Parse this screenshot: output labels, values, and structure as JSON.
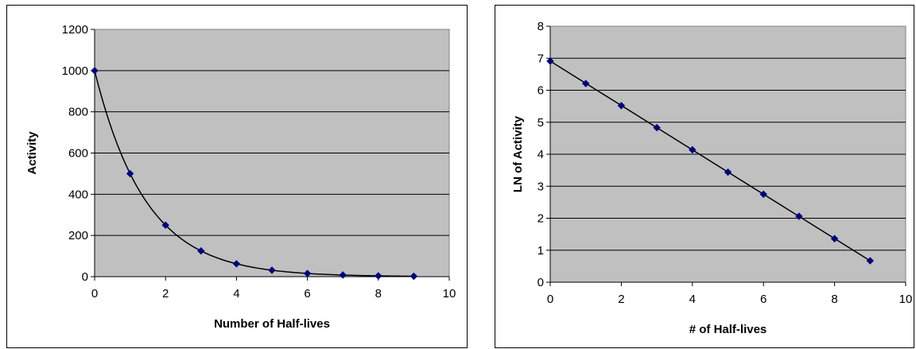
{
  "chart_data": [
    {
      "type": "scatter",
      "title": "",
      "xlabel": "Number of Half-lives",
      "ylabel": "Activity",
      "xlim": [
        0,
        10
      ],
      "ylim": [
        0,
        1200
      ],
      "x_ticks": [
        "0",
        "2",
        "4",
        "6",
        "8",
        "10"
      ],
      "y_ticks": [
        "0",
        "200",
        "400",
        "600",
        "800",
        "1000",
        "1200"
      ],
      "grid": "horizontal",
      "trendline": "exponential",
      "colors": {
        "plot_bg": "#c0c0c0",
        "marker": "#000080",
        "line": "#000000"
      },
      "series": [
        {
          "x": [
            0,
            1,
            2,
            3,
            4,
            5,
            6,
            7,
            8,
            9
          ],
          "y": [
            1000,
            500,
            250,
            125,
            62.5,
            31.25,
            15.6,
            7.8,
            3.9,
            1.95
          ]
        }
      ]
    },
    {
      "type": "scatter",
      "title": "",
      "xlabel": "# of Half-lives",
      "ylabel": "LN of Activity",
      "xlim": [
        0,
        10
      ],
      "ylim": [
        0,
        8
      ],
      "x_ticks": [
        "0",
        "2",
        "4",
        "6",
        "8",
        "10"
      ],
      "y_ticks": [
        "0",
        "1",
        "2",
        "3",
        "4",
        "5",
        "6",
        "7",
        "8"
      ],
      "grid": "horizontal",
      "trendline": "linear",
      "colors": {
        "plot_bg": "#c0c0c0",
        "marker": "#000080",
        "line": "#000000"
      },
      "series": [
        {
          "x": [
            0,
            1,
            2,
            3,
            4,
            5,
            6,
            7,
            8,
            9
          ],
          "y": [
            6.91,
            6.21,
            5.52,
            4.83,
            4.14,
            3.44,
            2.75,
            2.06,
            1.36,
            0.67
          ]
        }
      ]
    }
  ]
}
